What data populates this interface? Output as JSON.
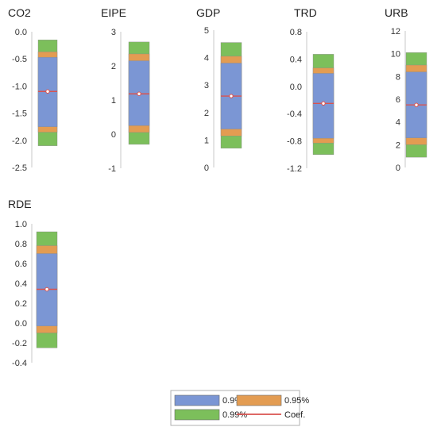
{
  "colors": {
    "band_90": "#7b96d4",
    "band_95": "#e39c52",
    "band_99": "#7cbf5b",
    "coef": "#d9534f",
    "axis": "#c8c8c8",
    "text": "#333333"
  },
  "chart_data": [
    {
      "type": "interval",
      "title": "CO2",
      "yticks": [
        "0.0",
        "-0.5",
        "-1.0",
        "-1.5",
        "-2.0",
        "-2.5"
      ],
      "ylim": [
        -2.5,
        0.0
      ],
      "coef": -1.1,
      "interval_90": [
        -1.75,
        -0.47
      ],
      "interval_95": [
        -1.85,
        -0.37
      ],
      "interval_99": [
        -2.1,
        -0.15
      ]
    },
    {
      "type": "interval",
      "title": "EIPE",
      "yticks": [
        "3",
        "2",
        "1",
        "0",
        "-1"
      ],
      "ylim": [
        -1,
        3
      ],
      "coef": 1.18,
      "interval_90": [
        0.25,
        2.15
      ],
      "interval_95": [
        0.05,
        2.35
      ],
      "interval_99": [
        -0.3,
        2.7
      ]
    },
    {
      "type": "interval",
      "title": "GDP",
      "yticks": [
        "5",
        "4",
        "3",
        "2",
        "1",
        "0"
      ],
      "ylim": [
        0,
        5
      ],
      "coef": 2.6,
      "interval_90": [
        1.4,
        3.8
      ],
      "interval_95": [
        1.15,
        4.05
      ],
      "interval_99": [
        0.7,
        4.55
      ]
    },
    {
      "type": "interval",
      "title": "TRD",
      "yticks": [
        "0.8",
        "0.4",
        "0.0",
        "-0.4",
        "-0.8",
        "-1.2"
      ],
      "ylim": [
        -1.2,
        0.8
      ],
      "coef": -0.25,
      "interval_90": [
        -0.76,
        0.19
      ],
      "interval_95": [
        -0.83,
        0.27
      ],
      "interval_99": [
        -1.0,
        0.47
      ]
    },
    {
      "type": "interval",
      "title": "URB",
      "yticks": [
        "12",
        "10",
        "8",
        "6",
        "4",
        "2",
        "0"
      ],
      "ylim": [
        0,
        12
      ],
      "coef": 5.5,
      "interval_90": [
        2.6,
        8.4
      ],
      "interval_95": [
        2.0,
        9.0
      ],
      "interval_99": [
        0.9,
        10.1
      ]
    },
    {
      "type": "interval",
      "title": "RDE",
      "yticks": [
        "1.0",
        "0.8",
        "0.6",
        "0.4",
        "0.2",
        "0.0",
        "-0.2",
        "-0.4"
      ],
      "ylim": [
        -0.4,
        1.0
      ],
      "coef": 0.34,
      "interval_90": [
        -0.03,
        0.7
      ],
      "interval_95": [
        -0.1,
        0.78
      ],
      "interval_99": [
        -0.25,
        0.92
      ]
    }
  ],
  "legend": {
    "items": [
      {
        "label": "0.9%",
        "color_key": "band_90"
      },
      {
        "label": "0.95%",
        "color_key": "band_95"
      },
      {
        "label": "0.99%",
        "color_key": "band_99"
      },
      {
        "label": "Coef.",
        "color_key": "coef"
      }
    ]
  }
}
